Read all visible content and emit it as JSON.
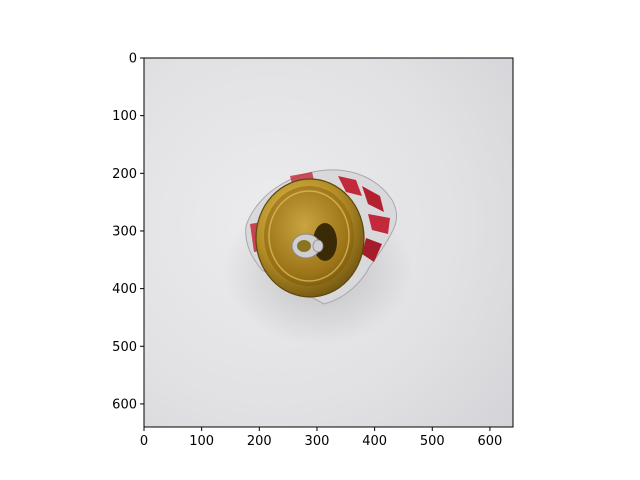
{
  "image": {
    "subject": "crushed aluminum can viewed from the top",
    "colors": {
      "background": "#dcdcdf",
      "can_rim": "#b8932a",
      "can_inner": "#a87d1e",
      "can_label_red": "#c2293a",
      "pull_tab": "#c9c9c9"
    }
  },
  "axes": {
    "x_ticks": [
      "0",
      "100",
      "200",
      "300",
      "400",
      "500",
      "600"
    ],
    "y_ticks": [
      "0",
      "100",
      "200",
      "300",
      "400",
      "500",
      "600"
    ],
    "xlim": [
      0,
      640
    ],
    "ylim": [
      640,
      0
    ]
  }
}
